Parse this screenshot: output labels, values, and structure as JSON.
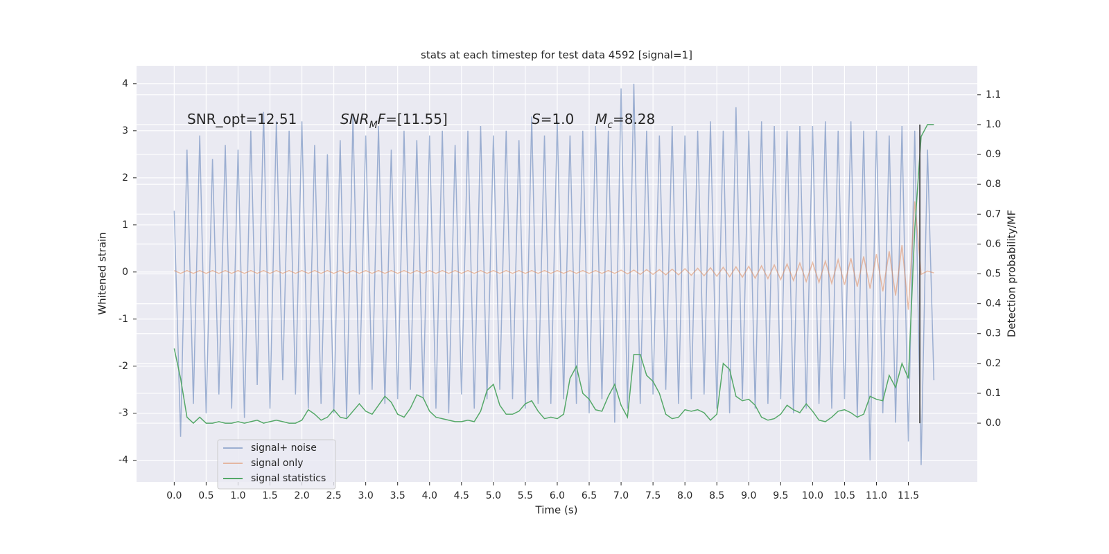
{
  "chart_data": {
    "type": "line",
    "title": "stats at each timestep for test data 4592 [signal=1]",
    "xlabel": "Time (s)",
    "ylabel": "Whitened strain",
    "y2label": "Detection probability/MF",
    "xlim": [
      -0.59,
      12.58
    ],
    "ylim": [
      -4.46,
      4.38
    ],
    "y2lim": [
      -0.197,
      1.197
    ],
    "xticks": [
      {
        "value": 0,
        "label": "0.0"
      },
      0.5,
      {
        "value": 1,
        "label": "1.0"
      },
      1.5,
      {
        "value": 2,
        "label": "2.0"
      },
      2.5,
      {
        "value": 3,
        "label": "3.0"
      },
      3.5,
      {
        "value": 4,
        "label": "4.0"
      },
      4.5,
      {
        "value": 5,
        "label": "5.0"
      },
      5.5,
      {
        "value": 6,
        "label": "6.0"
      },
      6.5,
      {
        "value": 7,
        "label": "7.0"
      },
      7.5,
      {
        "value": 8,
        "label": "8.0"
      },
      8.5,
      {
        "value": 9,
        "label": "9.0"
      },
      9.5,
      {
        "value": 10,
        "label": "10.0"
      },
      10.5,
      {
        "value": 11,
        "label": "11.0"
      },
      11.5
    ],
    "yticks": [
      -4,
      -3,
      -2,
      -1,
      0,
      1,
      2,
      3,
      4
    ],
    "y2ticks": [
      {
        "value": 0,
        "label": "0.0"
      },
      0.1,
      0.2,
      0.3,
      0.4,
      0.5,
      0.6,
      0.7,
      0.8,
      0.9,
      {
        "value": 1,
        "label": "1.0"
      },
      1.1
    ],
    "grid": true,
    "legend": "lower left",
    "x": [
      0,
      0.1,
      0.2,
      0.3,
      0.4,
      0.5,
      0.6,
      0.7,
      0.8,
      0.9,
      1,
      1.1,
      1.2,
      1.3,
      1.4,
      1.5,
      1.6,
      1.7,
      1.8,
      1.9,
      2,
      2.1,
      2.2,
      2.3,
      2.4,
      2.5,
      2.6,
      2.7,
      2.8,
      2.9,
      3,
      3.1,
      3.2,
      3.3,
      3.4,
      3.5,
      3.6,
      3.7,
      3.8,
      3.9,
      4,
      4.1,
      4.2,
      4.3,
      4.4,
      4.5,
      4.6,
      4.7,
      4.8,
      4.9,
      5,
      5.1,
      5.2,
      5.3,
      5.4,
      5.5,
      5.6,
      5.7,
      5.8,
      5.9,
      6,
      6.1,
      6.2,
      6.3,
      6.4,
      6.5,
      6.6,
      6.7,
      6.8,
      6.9,
      7,
      7.1,
      7.2,
      7.3,
      7.4,
      7.5,
      7.6,
      7.7,
      7.8,
      7.9,
      8,
      8.1,
      8.2,
      8.3,
      8.4,
      8.5,
      8.6,
      8.7,
      8.8,
      8.9,
      9,
      9.1,
      9.2,
      9.3,
      9.4,
      9.5,
      9.6,
      9.7,
      9.8,
      9.9,
      10,
      10.1,
      10.2,
      10.3,
      10.4,
      10.5,
      10.6,
      10.7,
      10.8,
      10.9,
      11,
      11.1,
      11.2,
      11.3,
      11.4,
      11.5,
      11.6,
      11.7,
      11.8,
      11.9
    ],
    "series": [
      {
        "name": "signal+ noise",
        "color": "#4c72b0",
        "opacity": 0.5,
        "values": [
          1.3,
          -3.5,
          2.6,
          -2.8,
          2.9,
          -3.0,
          2.4,
          -2.6,
          2.7,
          -2.9,
          2.6,
          -3.1,
          3.0,
          -2.4,
          3.4,
          -2.9,
          3.2,
          -2.3,
          3.0,
          -2.6,
          3.2,
          -2.9,
          2.7,
          -2.8,
          2.5,
          -3.0,
          2.8,
          -3.1,
          3.3,
          -2.6,
          2.9,
          -2.5,
          3.1,
          -2.8,
          2.6,
          -2.7,
          3.0,
          -2.5,
          2.8,
          -2.7,
          2.9,
          -2.9,
          3.0,
          -3.0,
          2.7,
          -2.6,
          3.0,
          -2.9,
          3.1,
          -2.7,
          2.9,
          -2.5,
          3.0,
          -2.7,
          2.8,
          -2.9,
          3.3,
          -2.8,
          2.9,
          -2.8,
          3.2,
          -2.7,
          2.9,
          -2.8,
          3.0,
          -3.0,
          3.1,
          -2.7,
          3.0,
          -3.2,
          3.9,
          -2.9,
          4.0,
          -2.8,
          3.0,
          -2.6,
          2.9,
          -2.5,
          3.1,
          -2.8,
          2.9,
          -2.7,
          3.0,
          -2.6,
          3.2,
          -2.9,
          3.0,
          -3.0,
          3.5,
          -2.7,
          3.0,
          -2.9,
          3.2,
          -2.8,
          3.1,
          -2.7,
          3.0,
          -3.0,
          3.1,
          -2.9,
          3.1,
          -2.8,
          3.2,
          -2.9,
          3.0,
          -2.7,
          3.2,
          -3.1,
          3.0,
          -4.0,
          3.0,
          -3.0,
          2.9,
          -3.2,
          3.1,
          -3.6,
          3.0,
          -4.1,
          2.6,
          -2.3
        ]
      },
      {
        "name": "signal only",
        "color": "#dd8452",
        "opacity": 0.5,
        "values": [
          0.03,
          -0.03,
          0.03,
          -0.03,
          0.03,
          -0.03,
          0.03,
          -0.03,
          0.03,
          -0.03,
          0.03,
          -0.03,
          0.03,
          -0.03,
          0.03,
          -0.03,
          0.03,
          -0.03,
          0.03,
          -0.03,
          0.03,
          -0.03,
          0.03,
          -0.03,
          0.03,
          -0.03,
          0.03,
          -0.03,
          0.03,
          -0.03,
          0.03,
          -0.03,
          0.03,
          -0.03,
          0.03,
          -0.03,
          0.03,
          -0.03,
          0.03,
          -0.03,
          0.03,
          -0.03,
          0.03,
          -0.03,
          0.03,
          -0.03,
          0.03,
          -0.03,
          0.03,
          -0.03,
          0.03,
          -0.03,
          0.03,
          -0.03,
          0.03,
          -0.03,
          0.03,
          -0.03,
          0.03,
          -0.03,
          0.03,
          -0.03,
          0.03,
          -0.03,
          0.03,
          -0.03,
          0.03,
          -0.03,
          0.03,
          -0.03,
          0.04,
          -0.04,
          0.04,
          -0.05,
          0.05,
          -0.05,
          0.05,
          -0.06,
          0.06,
          -0.06,
          0.07,
          -0.07,
          0.08,
          -0.08,
          0.09,
          -0.09,
          0.1,
          -0.1,
          0.11,
          -0.11,
          0.12,
          -0.13,
          0.13,
          -0.14,
          0.15,
          -0.16,
          0.17,
          -0.18,
          0.19,
          -0.2,
          0.2,
          -0.22,
          0.23,
          -0.24,
          0.26,
          -0.27,
          0.29,
          -0.31,
          0.33,
          -0.35,
          0.38,
          -0.41,
          0.44,
          -0.5,
          0.57,
          -0.8,
          1.5,
          -0.05,
          0.02,
          -0.02
        ]
      },
      {
        "name": "signal statistics",
        "color": "#55a868",
        "opacity": 1,
        "axis": "y2",
        "values": [
          0.25,
          0.15,
          0.02,
          0.0,
          0.02,
          0.0,
          0.0,
          0.005,
          0.0,
          0.0,
          0.005,
          0.0,
          0.005,
          0.01,
          0.0,
          0.005,
          0.01,
          0.005,
          0.0,
          0.0,
          0.01,
          0.045,
          0.03,
          0.01,
          0.02,
          0.045,
          0.02,
          0.015,
          0.04,
          0.065,
          0.04,
          0.03,
          0.06,
          0.09,
          0.07,
          0.03,
          0.02,
          0.05,
          0.095,
          0.085,
          0.04,
          0.02,
          0.015,
          0.01,
          0.005,
          0.005,
          0.01,
          0.005,
          0.04,
          0.11,
          0.13,
          0.06,
          0.03,
          0.03,
          0.04,
          0.065,
          0.075,
          0.04,
          0.015,
          0.02,
          0.015,
          0.03,
          0.15,
          0.19,
          0.1,
          0.08,
          0.045,
          0.04,
          0.09,
          0.13,
          0.06,
          0.02,
          0.23,
          0.23,
          0.16,
          0.14,
          0.1,
          0.03,
          0.015,
          0.02,
          0.045,
          0.04,
          0.045,
          0.035,
          0.01,
          0.03,
          0.2,
          0.18,
          0.09,
          0.075,
          0.08,
          0.06,
          0.02,
          0.01,
          0.015,
          0.03,
          0.06,
          0.045,
          0.035,
          0.065,
          0.04,
          0.01,
          0.005,
          0.02,
          0.04,
          0.045,
          0.035,
          0.02,
          0.03,
          0.09,
          0.08,
          0.075,
          0.16,
          0.12,
          0.2,
          0.15,
          0.65,
          0.96,
          1.0,
          1.0
        ]
      }
    ],
    "vline": {
      "x": 11.68,
      "y2": [
        0,
        1.0
      ],
      "color": "#444444"
    },
    "annotations": [
      {
        "parts": [
          {
            "text": "SNR_opt=12.51"
          }
        ]
      },
      {
        "parts": [
          {
            "text": "SNR",
            "style": "italic"
          },
          {
            "text": "M",
            "style": "sub"
          },
          {
            "text": "F",
            "style": "italic"
          },
          {
            "text": "=[11.55]"
          }
        ]
      },
      {
        "parts": [
          {
            "text": "S",
            "style": "italic"
          },
          {
            "text": "=1.0"
          }
        ]
      },
      {
        "parts": [
          {
            "text": "M",
            "style": "italic"
          },
          {
            "text": "c",
            "style": "sub"
          },
          {
            "text": "=8.28"
          }
        ]
      }
    ]
  }
}
